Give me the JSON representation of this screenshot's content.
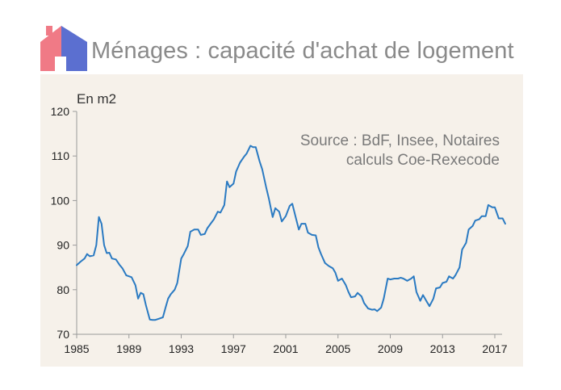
{
  "header": {
    "title": "Ménages : capacité d'achat de logement",
    "logo_icon": "house-icon",
    "logo_colors": {
      "left_roof": "#f07a86",
      "right_roof": "#5b6fd0"
    }
  },
  "chart_data": {
    "type": "line",
    "ylabel": "En m2",
    "source_lines": [
      "Source : BdF, Insee, Notaires",
      "calculs Coe-Rexecode"
    ],
    "xlim": [
      1985,
      2018.8
    ],
    "ylim": [
      70,
      120
    ],
    "x_ticks": [
      1985,
      1989,
      1993,
      1997,
      2001,
      2005,
      2009,
      2013,
      2017
    ],
    "y_ticks": [
      70,
      80,
      90,
      100,
      110,
      120
    ],
    "grid": false,
    "line_color": "#2a7ac2",
    "series": [
      {
        "points": [
          [
            1985.0,
            85.5
          ],
          [
            1985.3,
            86.3
          ],
          [
            1985.6,
            87.0
          ],
          [
            1985.8,
            88.0
          ],
          [
            1986.0,
            87.5
          ],
          [
            1986.3,
            87.7
          ],
          [
            1986.5,
            90.0
          ],
          [
            1986.7,
            96.3
          ],
          [
            1986.9,
            94.8
          ],
          [
            1987.1,
            90.0
          ],
          [
            1987.3,
            88.2
          ],
          [
            1987.5,
            88.3
          ],
          [
            1987.7,
            87.0
          ],
          [
            1988.0,
            86.8
          ],
          [
            1988.3,
            85.5
          ],
          [
            1988.5,
            84.8
          ],
          [
            1988.8,
            83.2
          ],
          [
            1989.0,
            83.0
          ],
          [
            1989.2,
            82.8
          ],
          [
            1989.5,
            81.0
          ],
          [
            1989.7,
            78.0
          ],
          [
            1989.9,
            79.3
          ],
          [
            1990.1,
            79.0
          ],
          [
            1990.3,
            76.5
          ],
          [
            1990.6,
            73.3
          ],
          [
            1990.8,
            73.2
          ],
          [
            1991.0,
            73.2
          ],
          [
            1991.3,
            73.5
          ],
          [
            1991.6,
            73.8
          ],
          [
            1991.8,
            76.0
          ],
          [
            1992.0,
            78.0
          ],
          [
            1992.2,
            79.0
          ],
          [
            1992.5,
            80.0
          ],
          [
            1992.7,
            81.5
          ],
          [
            1993.0,
            87.0
          ],
          [
            1993.2,
            88.0
          ],
          [
            1993.5,
            89.8
          ],
          [
            1993.7,
            93.0
          ],
          [
            1994.0,
            93.5
          ],
          [
            1994.3,
            93.5
          ],
          [
            1994.5,
            92.3
          ],
          [
            1994.8,
            92.5
          ],
          [
            1995.0,
            93.8
          ],
          [
            1995.3,
            95.0
          ],
          [
            1995.5,
            95.8
          ],
          [
            1995.8,
            97.5
          ],
          [
            1996.0,
            97.3
          ],
          [
            1996.3,
            99.0
          ],
          [
            1996.5,
            104.3
          ],
          [
            1996.7,
            103.0
          ],
          [
            1997.0,
            103.8
          ],
          [
            1997.2,
            106.5
          ],
          [
            1997.5,
            108.5
          ],
          [
            1997.8,
            109.8
          ],
          [
            1998.0,
            110.5
          ],
          [
            1998.3,
            112.3
          ],
          [
            1998.5,
            112.0
          ],
          [
            1998.7,
            112.0
          ],
          [
            1999.0,
            108.8
          ],
          [
            1999.2,
            107.0
          ],
          [
            1999.5,
            103.0
          ],
          [
            1999.7,
            100.5
          ],
          [
            2000.0,
            96.3
          ],
          [
            2000.2,
            98.3
          ],
          [
            2000.5,
            97.5
          ],
          [
            2000.7,
            95.3
          ],
          [
            2001.0,
            96.5
          ],
          [
            2001.3,
            98.8
          ],
          [
            2001.5,
            99.3
          ],
          [
            2001.7,
            97.0
          ],
          [
            2002.0,
            93.5
          ],
          [
            2002.2,
            94.8
          ],
          [
            2002.5,
            94.8
          ],
          [
            2002.7,
            92.8
          ],
          [
            2003.0,
            92.3
          ],
          [
            2003.3,
            92.2
          ],
          [
            2003.5,
            89.5
          ],
          [
            2003.7,
            88.0
          ],
          [
            2004.0,
            86.0
          ],
          [
            2004.3,
            85.3
          ],
          [
            2004.6,
            84.8
          ],
          [
            2004.8,
            83.8
          ],
          [
            2005.0,
            82.0
          ],
          [
            2005.3,
            82.5
          ],
          [
            2005.6,
            81.0
          ],
          [
            2005.8,
            79.5
          ],
          [
            2006.0,
            78.3
          ],
          [
            2006.3,
            78.5
          ],
          [
            2006.5,
            79.3
          ],
          [
            2006.8,
            78.5
          ],
          [
            2007.0,
            77.0
          ],
          [
            2007.3,
            75.8
          ],
          [
            2007.6,
            75.5
          ],
          [
            2007.8,
            75.6
          ],
          [
            2008.0,
            75.2
          ],
          [
            2008.3,
            76.0
          ],
          [
            2008.5,
            78.0
          ],
          [
            2008.8,
            82.5
          ],
          [
            2009.0,
            82.3
          ],
          [
            2009.3,
            82.5
          ],
          [
            2009.6,
            82.5
          ],
          [
            2009.8,
            82.7
          ],
          [
            2010.0,
            82.5
          ],
          [
            2010.3,
            82.0
          ],
          [
            2010.6,
            82.5
          ],
          [
            2010.8,
            83.0
          ],
          [
            2011.0,
            79.5
          ],
          [
            2011.3,
            77.5
          ],
          [
            2011.5,
            78.8
          ],
          [
            2011.8,
            77.3
          ],
          [
            2012.0,
            76.3
          ],
          [
            2012.3,
            78.0
          ],
          [
            2012.5,
            80.3
          ],
          [
            2012.8,
            80.5
          ],
          [
            2013.0,
            81.5
          ],
          [
            2013.3,
            81.8
          ],
          [
            2013.5,
            83.0
          ],
          [
            2013.8,
            82.5
          ],
          [
            2014.0,
            83.3
          ],
          [
            2014.3,
            85.0
          ],
          [
            2014.5,
            89.0
          ],
          [
            2014.8,
            90.5
          ],
          [
            2015.0,
            93.5
          ],
          [
            2015.3,
            94.3
          ],
          [
            2015.5,
            95.5
          ],
          [
            2015.8,
            95.8
          ],
          [
            2016.0,
            96.5
          ],
          [
            2016.3,
            96.5
          ],
          [
            2016.5,
            99.0
          ],
          [
            2016.8,
            98.5
          ],
          [
            2017.0,
            98.5
          ],
          [
            2017.3,
            96.0
          ],
          [
            2017.6,
            96.0
          ],
          [
            2017.8,
            94.8
          ]
        ]
      }
    ]
  }
}
